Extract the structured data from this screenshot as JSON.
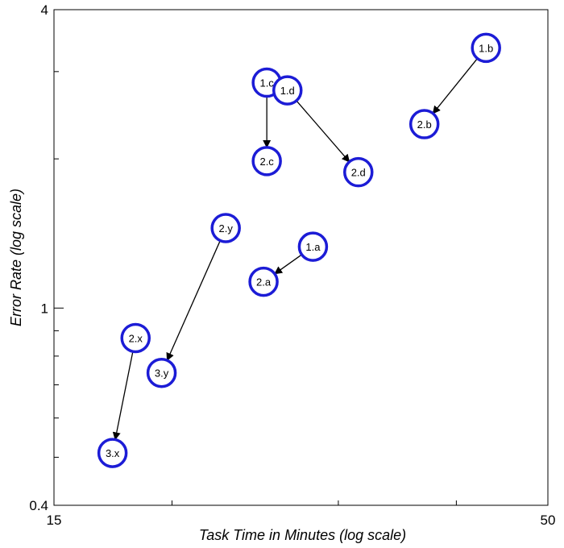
{
  "chart_data": {
    "type": "scatter",
    "title": "",
    "xlabel": "Task Time in Minutes (log scale)",
    "ylabel": "Error Rate (log scale)",
    "x_scale": "log",
    "y_scale": "log",
    "xlim": [
      15,
      50
    ],
    "ylim": [
      0.4,
      4
    ],
    "x_ticks": [
      "15",
      "50"
    ],
    "y_ticks": [
      "4",
      "1",
      "0.4"
    ],
    "grid": false,
    "legend": "none",
    "colors": {
      "node_stroke": "#1c1cd6",
      "node_fill": "#ffffff",
      "arrow": "#000000"
    },
    "points": [
      {
        "label": "1.a",
        "x": 28.2,
        "y": 1.33
      },
      {
        "label": "2.a",
        "x": 25.0,
        "y": 1.13
      },
      {
        "label": "1.b",
        "x": 43.0,
        "y": 3.35
      },
      {
        "label": "2.b",
        "x": 37.0,
        "y": 2.35
      },
      {
        "label": "1.c",
        "x": 25.2,
        "y": 2.85
      },
      {
        "label": "2.c",
        "x": 25.2,
        "y": 1.98
      },
      {
        "label": "1.d",
        "x": 26.5,
        "y": 2.75
      },
      {
        "label": "2.d",
        "x": 31.5,
        "y": 1.88
      },
      {
        "label": "2.y",
        "x": 22.8,
        "y": 1.45
      },
      {
        "label": "3.y",
        "x": 19.5,
        "y": 0.74
      },
      {
        "label": "2.x",
        "x": 18.3,
        "y": 0.87
      },
      {
        "label": "3.x",
        "x": 17.3,
        "y": 0.51
      }
    ],
    "arrows": [
      {
        "from": "1.a",
        "to": "2.a"
      },
      {
        "from": "1.b",
        "to": "2.b"
      },
      {
        "from": "1.c",
        "to": "2.c"
      },
      {
        "from": "1.d",
        "to": "2.d"
      },
      {
        "from": "2.y",
        "to": "3.y"
      },
      {
        "from": "2.x",
        "to": "3.x"
      }
    ]
  }
}
